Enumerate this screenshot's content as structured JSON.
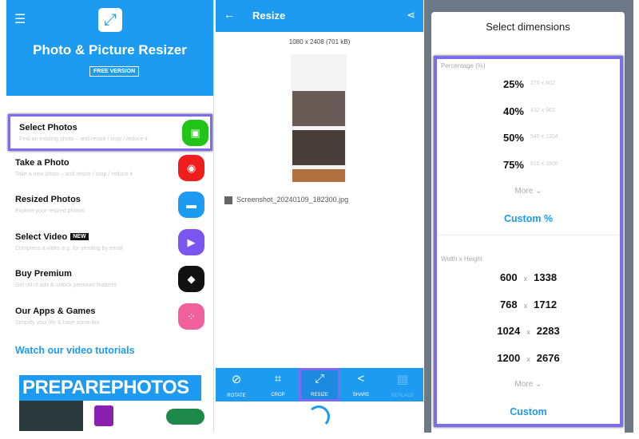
{
  "left": {
    "title": "Photo & Picture Resizer",
    "badge": "FREE VERSION",
    "items": [
      {
        "title": "Select Photos",
        "subtitle": "Find an existing photo – and resize / crop / reduce it",
        "color": "#22c41a",
        "icon": "gallery-icon",
        "glyph": "▣"
      },
      {
        "title": "Take a Photo",
        "subtitle": "Take a new photo – and resize / crop / reduce it",
        "color": "#f01d1d",
        "icon": "camera-icon",
        "glyph": "◉"
      },
      {
        "title": "Resized Photos",
        "subtitle": "Explore your resized photos",
        "color": "#1d9bf0",
        "icon": "folder-icon",
        "glyph": "▬"
      },
      {
        "title": "Select Video",
        "subtitle": "Compress a video e.g. for sending by email",
        "color": "#7b55f0",
        "icon": "video-icon",
        "glyph": "▶",
        "badge": "NEW"
      },
      {
        "title": "Buy Premium",
        "subtitle": "Get rid of ads & unlock premium features",
        "color": "#111111",
        "icon": "diamond-icon",
        "glyph": "◆"
      },
      {
        "title": "Our Apps & Games",
        "subtitle": "Simplify your life & have some fun",
        "color": "#f0609a",
        "icon": "apps-icon",
        "glyph": "⁘"
      }
    ],
    "video_link": "Watch our video tutorials",
    "ad_text": "PREPAREPHOTOS"
  },
  "middle": {
    "title": "Resize",
    "dimensions": "1080 x 2408 (701 kB)",
    "filename": "Screenshot_20240109_182300.jpg",
    "tools": [
      {
        "label": "ROTATE",
        "glyph": "⊘"
      },
      {
        "label": "CROP",
        "glyph": "⌗"
      },
      {
        "label": "RESIZE",
        "glyph": "⤢"
      },
      {
        "label": "SHARE",
        "glyph": "<"
      },
      {
        "label": "REPLACE",
        "glyph": "▤"
      }
    ]
  },
  "dialog": {
    "title": "Select dimensions",
    "percentage_label": "Percentage (%)",
    "percentages": [
      {
        "pct": "25%",
        "dim": "270 x 602"
      },
      {
        "pct": "40%",
        "dim": "432 x 963"
      },
      {
        "pct": "50%",
        "dim": "540 x 1204"
      },
      {
        "pct": "75%",
        "dim": "810 x 1806"
      }
    ],
    "more": "More ⌄",
    "custom_pct": "Custom %",
    "wh_label": "Width x Height",
    "sizes": [
      {
        "w": "600",
        "h": "1338"
      },
      {
        "w": "768",
        "h": "1712"
      },
      {
        "w": "1024",
        "h": "2283"
      },
      {
        "w": "1200",
        "h": "2676"
      }
    ],
    "x": "x",
    "more2": "More ⌄",
    "custom": "Custom"
  }
}
